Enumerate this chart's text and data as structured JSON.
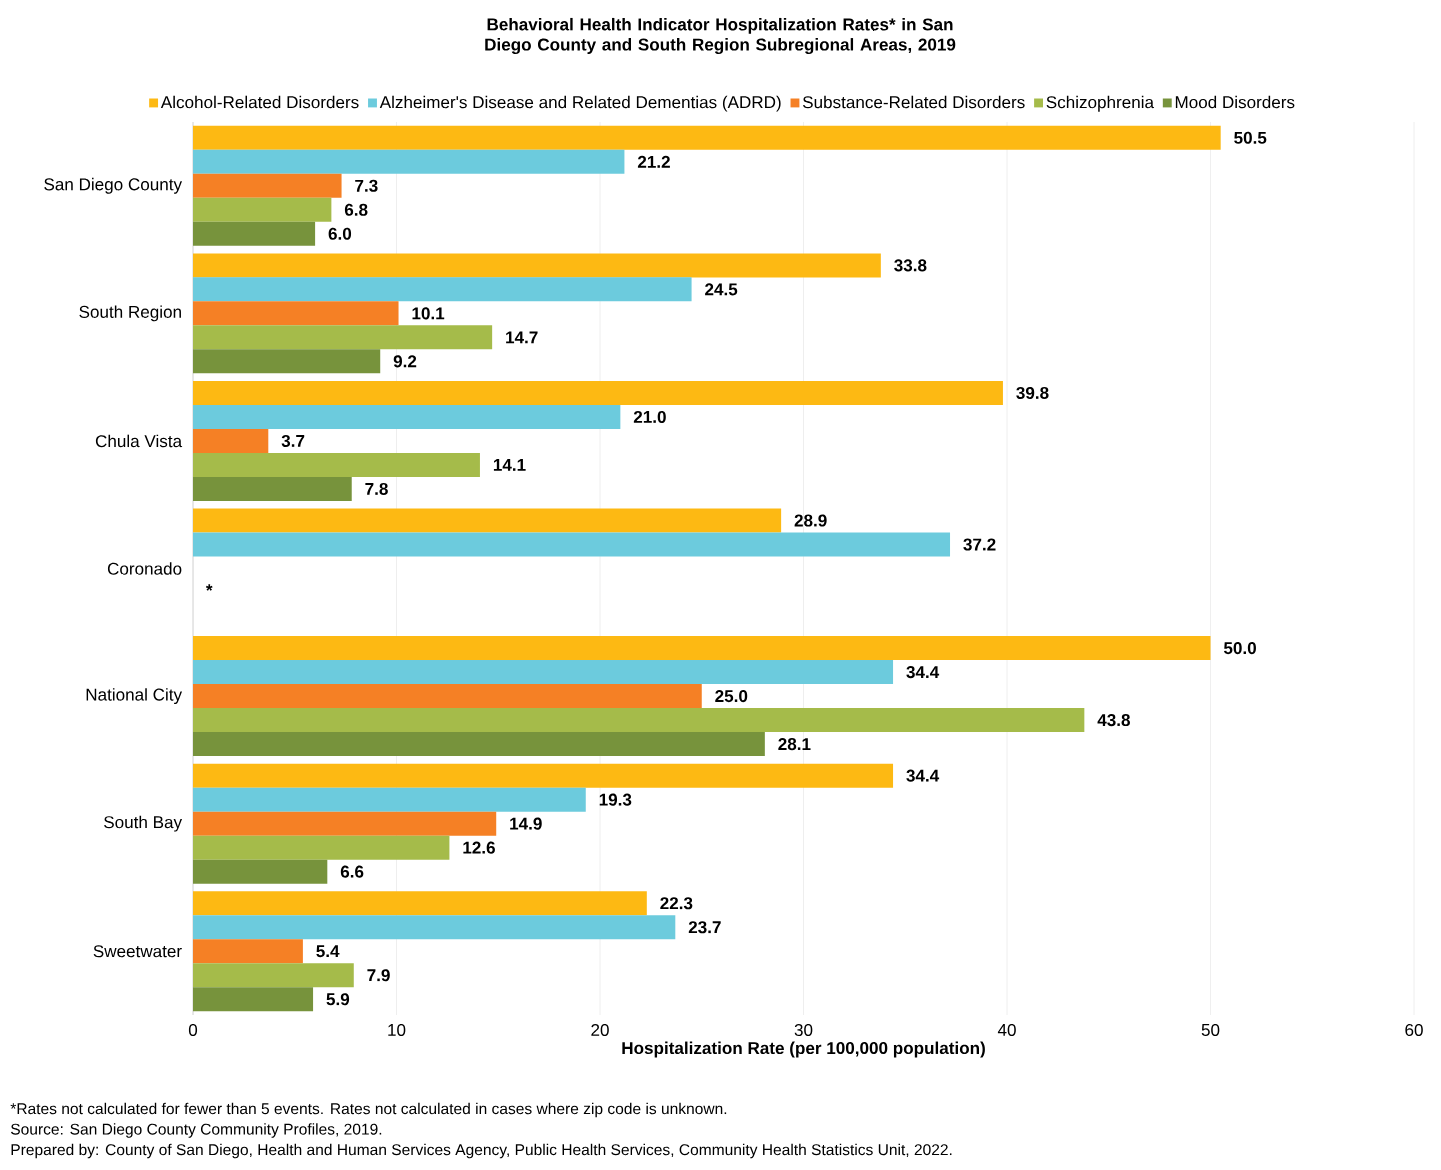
{
  "chart_data": {
    "type": "bar",
    "orientation": "horizontal",
    "title": "Behavioral Health Indicator Hospitalization Rates* in San Diego County and South Region Subregional Areas, 2019",
    "xlabel": "Hospitalization Rate (per 100,000 population)",
    "categories": [
      "San Diego County",
      "South Region",
      "Chula Vista",
      "Coronado",
      "National City",
      "South Bay",
      "Sweetwater"
    ],
    "series": [
      {
        "name": "Alcohol-Related Disorders",
        "color": "#fdb913",
        "values": [
          50.5,
          33.8,
          39.8,
          28.9,
          50.0,
          34.4,
          22.3
        ],
        "value_labels": [
          "50.5",
          "33.8",
          "39.8",
          "28.9",
          "50.0",
          "34.4",
          "22.3"
        ]
      },
      {
        "name": "Alzheimer's Disease and Related Dementias (ADRD)",
        "color": "#6ccbdd",
        "values": [
          21.2,
          24.5,
          21.0,
          37.2,
          34.4,
          19.3,
          23.7
        ],
        "value_labels": [
          "21.2",
          "24.5",
          "21.0",
          "37.2",
          "34.4",
          "19.3",
          "23.7"
        ]
      },
      {
        "name": "Substance-Related Disorders",
        "color": "#f58025",
        "values": [
          7.3,
          10.1,
          3.7,
          null,
          25.0,
          14.9,
          5.4
        ],
        "value_labels": [
          "7.3",
          "10.1",
          "3.7",
          null,
          "25.0",
          "14.9",
          "5.4"
        ]
      },
      {
        "name": "Schizophrenia",
        "color": "#a5bb4a",
        "values": [
          6.8,
          14.7,
          14.1,
          null,
          43.8,
          12.6,
          7.9
        ],
        "value_labels": [
          "6.8",
          "14.7",
          "14.1",
          null,
          "43.8",
          "12.6",
          "7.9"
        ]
      },
      {
        "name": "Mood Disorders",
        "color": "#77933c",
        "values": [
          6.0,
          9.2,
          7.8,
          null,
          28.1,
          6.6,
          5.9
        ],
        "value_labels": [
          "6.0",
          "9.2",
          "7.8",
          null,
          "28.1",
          "6.6",
          "5.9"
        ]
      }
    ],
    "xlim": [
      0,
      60
    ],
    "xticks": [
      0,
      10,
      20,
      30,
      40,
      50,
      60
    ],
    "grid": "x",
    "legend": "top",
    "annotations": [
      "*",
      "*Rates not calculated for fewer than 5 events. Rates not calculated in cases where zip code is unknown.",
      "Source: San Diego County Community Profiles, 2019.",
      "Prepared by: County of San Diego, Health and Human Services Agency, Public Health Services, Community Health Statistics Unit, 2022."
    ]
  }
}
